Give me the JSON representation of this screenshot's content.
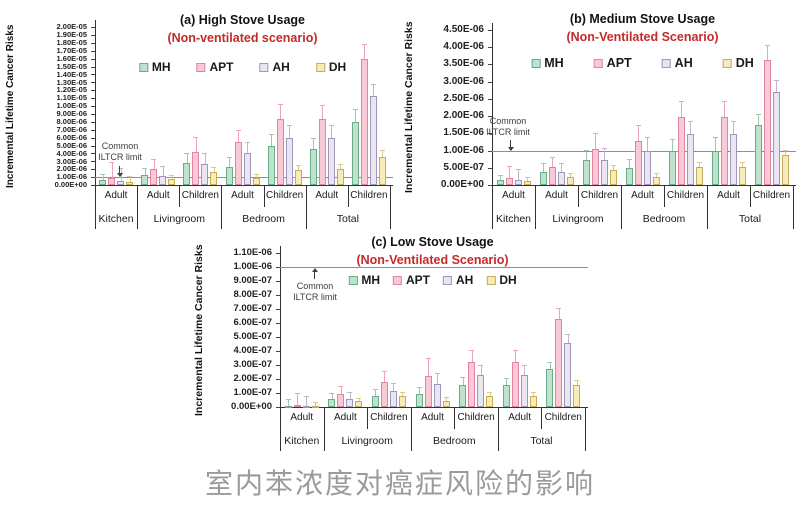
{
  "caption": "室内苯浓度对癌症风险的影响",
  "colors": {
    "subtitle_red": "#c42a2a",
    "caption_gray": "#9b9b9b",
    "annotation_text": "#3d3d3d",
    "ref_line": "#8f8f8f"
  },
  "series_styles": {
    "MH": {
      "fill": "#bfe2cc",
      "border": "#6aab89",
      "error": "#9fc7ae"
    },
    "APT": {
      "fill": "#f9c9d8",
      "border": "#e2849f",
      "error": "#eca4b8"
    },
    "AH": {
      "fill": "#e9e5f1",
      "border": "#a096ba",
      "error": "#c0b6d2"
    },
    "DH": {
      "fill": "#f7ecb9",
      "border": "#c3ad55",
      "error": "#d9c98a"
    }
  },
  "chart_data": [
    {
      "id": "a",
      "type": "bar",
      "title": "(a) High Stove Usage",
      "subtitle": "(Non-ventilated scenario)",
      "ylabel": "Incremental Lifetime Cancer Risks",
      "ymax": 2e-05,
      "yticks": [
        "0.00E+00",
        "1.00E-06",
        "2.00E-06",
        "3.00E-06",
        "4.00E-06",
        "5.00E-06",
        "6.00E-06",
        "7.00E-06",
        "8.00E-06",
        "9.00E-06",
        "1.00E-05",
        "1.10E-05",
        "1.20E-05",
        "1.30E-05",
        "1.40E-05",
        "1.50E-05",
        "1.60E-05",
        "1.70E-05",
        "1.80E-05",
        "1.90E-05",
        "2.00E-05"
      ],
      "ref_line": {
        "value": 1e-06,
        "label_lines": [
          "Common",
          "ILTCR limit"
        ]
      },
      "cell_labels": [
        "Adult",
        "Adult",
        "Children",
        "Adult",
        "Children",
        "Adult",
        "Children"
      ],
      "groups": [
        {
          "label": "Kitchen",
          "span": 1
        },
        {
          "label": "Livingroom",
          "span": 2
        },
        {
          "label": "Bedroom",
          "span": 2
        },
        {
          "label": "Total",
          "span": 2
        }
      ],
      "legend": [
        "MH",
        "APT",
        "AH",
        "DH"
      ],
      "series": [
        {
          "name": "MH",
          "values": [
            6e-07,
            1.3e-06,
            2.8e-06,
            2.3e-06,
            4.9e-06,
            4.5e-06,
            8e-06
          ],
          "errors_up": [
            8e-07,
            9e-07,
            1.2e-06,
            1.2e-06,
            1.5e-06,
            1.5e-06,
            1.6e-06
          ]
        },
        {
          "name": "APT",
          "values": [
            8.5e-07,
            2e-06,
            4.2e-06,
            5.5e-06,
            8.4e-06,
            8.4e-06,
            1.6e-05
          ],
          "errors_up": [
            2e-06,
            1.3e-06,
            1.9e-06,
            1.5e-06,
            1.8e-06,
            1.7e-06,
            1.9e-06
          ]
        },
        {
          "name": "AH",
          "values": [
            5.5e-07,
            1.2e-06,
            2.6e-06,
            4.1e-06,
            6e-06,
            6e-06,
            1.13e-05
          ],
          "errors_up": [
            1.6e-06,
            1.2e-06,
            1.5e-06,
            1.4e-06,
            1.6e-06,
            1.6e-06,
            1.5e-06
          ]
        },
        {
          "name": "DH",
          "values": [
            4e-07,
            8e-07,
            1.6e-06,
            8.5e-07,
            1.9e-06,
            2e-06,
            3.6e-06
          ],
          "errors_up": [
            7e-07,
            5e-07,
            7e-07,
            5e-07,
            6e-07,
            7e-07,
            8e-07
          ]
        }
      ]
    },
    {
      "id": "b",
      "type": "bar",
      "title": "(b) Medium Stove Usage",
      "subtitle": "(Non-Ventilated Scenario)",
      "ylabel": "Incremental Lifetime Cancer Risks",
      "ymax": 4.5e-06,
      "yticks": [
        "0.00E+00",
        "5.00E-07",
        "1.00E-06",
        "1.50E-06",
        "2.00E-06",
        "2.50E-06",
        "3.00E-06",
        "3.50E-06",
        "4.00E-06",
        "4.50E-06"
      ],
      "ref_line": {
        "value": 1e-06,
        "label_lines": [
          "Common",
          "ILTCR limit"
        ]
      },
      "cell_labels": [
        "Adult",
        "Adult",
        "Children",
        "Adult",
        "Children",
        "Adult",
        "Children"
      ],
      "groups": [
        {
          "label": "Kitchen",
          "span": 1
        },
        {
          "label": "Livingroom",
          "span": 2
        },
        {
          "label": "Bedroom",
          "span": 2
        },
        {
          "label": "Total",
          "span": 2
        }
      ],
      "legend": [
        "MH",
        "APT",
        "AH",
        "DH"
      ],
      "series": [
        {
          "name": "MH",
          "values": [
            1.5e-07,
            3.8e-07,
            7.2e-07,
            5e-07,
            1e-06,
            1e-06,
            1.75e-06
          ],
          "errors_up": [
            1.5e-07,
            2.5e-07,
            3e-07,
            2.5e-07,
            3.5e-07,
            4e-07,
            3e-07
          ]
        },
        {
          "name": "APT",
          "values": [
            1.9e-07,
            5.2e-07,
            1.05e-06,
            1.28e-06,
            1.98e-06,
            1.98e-06,
            3.62e-06
          ],
          "errors_up": [
            3.5e-07,
            3e-07,
            4.5e-07,
            4.5e-07,
            4.5e-07,
            4.5e-07,
            4.5e-07
          ]
        },
        {
          "name": "AH",
          "values": [
            1.4e-07,
            3.7e-07,
            7.2e-07,
            9.8e-07,
            1.47e-06,
            1.47e-06,
            2.7e-06
          ],
          "errors_up": [
            3.3e-07,
            2.8e-07,
            3.5e-07,
            4e-07,
            4e-07,
            4e-07,
            3.5e-07
          ]
        },
        {
          "name": "DH",
          "values": [
            1.1e-07,
            2.2e-07,
            4.3e-07,
            2.3e-07,
            5.3e-07,
            5.3e-07,
            8.8e-07
          ],
          "errors_up": [
            1.2e-07,
            1.2e-07,
            1.5e-07,
            1.2e-07,
            1.5e-07,
            1.5e-07,
            1.5e-07
          ]
        }
      ]
    },
    {
      "id": "c",
      "type": "bar",
      "title": "(c) Low Stove Usage",
      "subtitle": "(Non-Ventilated Scenario)",
      "ylabel": "Incremental Lifetime Cancer Risks",
      "ymax": 1.1e-06,
      "yticks": [
        "0.00E+00",
        "1.00E-07",
        "2.00E-07",
        "3.00E-07",
        "4.00E-07",
        "5.00E-07",
        "6.00E-07",
        "7.00E-07",
        "8.00E-07",
        "9.00E-07",
        "1.00E-06",
        "1.10E-06"
      ],
      "ref_line": {
        "value": 1e-06,
        "label_lines": [
          "Common",
          "ILTCR limit"
        ]
      },
      "cell_labels": [
        "Adult",
        "Adult",
        "Children",
        "Adult",
        "Children",
        "Adult",
        "Children"
      ],
      "groups": [
        {
          "label": "Kitchen",
          "span": 1
        },
        {
          "label": "Livingroom",
          "span": 2
        },
        {
          "label": "Bedroom",
          "span": 2
        },
        {
          "label": "Total",
          "span": 2
        }
      ],
      "legend": [
        "MH",
        "APT",
        "AH",
        "DH"
      ],
      "series": [
        {
          "name": "MH",
          "values": [
            6e-09,
            6e-08,
            8e-08,
            9e-08,
            1.55e-07,
            1.55e-07,
            2.7e-07
          ],
          "errors_up": [
            5e-08,
            4e-08,
            5e-08,
            5e-08,
            6e-08,
            5e-08,
            5e-08
          ]
        },
        {
          "name": "APT",
          "values": [
            1.2e-08,
            9e-08,
            1.8e-07,
            2.2e-07,
            3.2e-07,
            3.2e-07,
            6.3e-07
          ],
          "errors_up": [
            9e-08,
            6e-08,
            8e-08,
            1.3e-07,
            9e-08,
            9e-08,
            8e-08
          ]
        },
        {
          "name": "AH",
          "values": [
            8e-09,
            6e-08,
            1.15e-07,
            1.65e-07,
            2.3e-07,
            2.3e-07,
            4.55e-07
          ],
          "errors_up": [
            7e-08,
            5e-08,
            6e-08,
            8e-08,
            7e-08,
            7e-08,
            7e-08
          ]
        },
        {
          "name": "DH",
          "values": [
            6e-09,
            4e-08,
            8e-08,
            4.5e-08,
            8e-08,
            8e-08,
            1.6e-07
          ],
          "errors_up": [
            3e-08,
            2.5e-08,
            3e-08,
            2.5e-08,
            3e-08,
            3e-08,
            3e-08
          ]
        }
      ]
    }
  ]
}
